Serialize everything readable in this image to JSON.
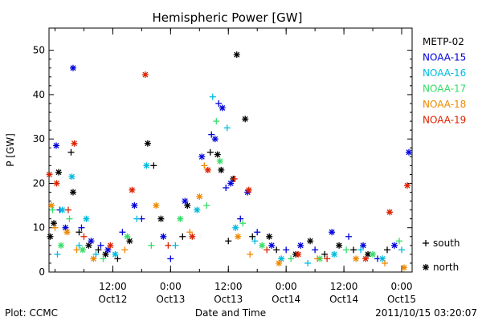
{
  "chart_data": {
    "type": "scatter",
    "title": "Hemispheric Power [GW]",
    "xlabel": "Date and Time",
    "ylabel": "P [GW]",
    "xlim": [
      "2011-10-11 22:45",
      "2011-10-15 02:10"
    ],
    "ylim": [
      0,
      55
    ],
    "yticks": [
      0,
      10,
      20,
      30,
      40,
      50
    ],
    "x_tick_labels": [
      {
        "time": "2011-10-12 12:00",
        "top": "12:00",
        "bottom": "Oct12"
      },
      {
        "time": "2011-10-13 00:00",
        "top": "0:00",
        "bottom": "Oct13"
      },
      {
        "time": "2011-10-13 12:00",
        "top": "12:00",
        "bottom": "Oct13"
      },
      {
        "time": "2011-10-14 00:00",
        "top": "0:00",
        "bottom": "Oct14"
      },
      {
        "time": "2011-10-14 12:00",
        "top": "12:00",
        "bottom": "Oct14"
      },
      {
        "time": "2011-10-15 00:00",
        "top": "0:00",
        "bottom": "Oct15"
      }
    ],
    "marker_legend": [
      {
        "symbol": "+",
        "label": "south"
      },
      {
        "symbol": "*",
        "label": "north"
      }
    ],
    "series": [
      {
        "name": "METP-02",
        "color": "#000000",
        "points": [
          {
            "t": "2011-10-11 23:00",
            "v": 8,
            "m": "north"
          },
          {
            "t": "2011-10-11 23:45",
            "v": 11,
            "m": "north"
          },
          {
            "t": "2011-10-12 00:45",
            "v": 22.5,
            "m": "north"
          },
          {
            "t": "2011-10-12 03:20",
            "v": 27,
            "m": "south"
          },
          {
            "t": "2011-10-12 03:45",
            "v": 18,
            "m": "north"
          },
          {
            "t": "2011-10-12 05:00",
            "v": 9,
            "m": "south"
          },
          {
            "t": "2011-10-12 07:00",
            "v": 6,
            "m": "north"
          },
          {
            "t": "2011-10-12 09:00",
            "v": 5,
            "m": "south"
          },
          {
            "t": "2011-10-12 10:30",
            "v": 4,
            "m": "north"
          },
          {
            "t": "2011-10-12 13:00",
            "v": 3,
            "m": "south"
          },
          {
            "t": "2011-10-12 15:30",
            "v": 7,
            "m": "north"
          },
          {
            "t": "2011-10-12 19:15",
            "v": 29,
            "m": "north"
          },
          {
            "t": "2011-10-12 20:30",
            "v": 24,
            "m": "south"
          },
          {
            "t": "2011-10-12 22:00",
            "v": 12,
            "m": "north"
          },
          {
            "t": "2011-10-13 02:30",
            "v": 8,
            "m": "south"
          },
          {
            "t": "2011-10-13 03:30",
            "v": 15,
            "m": "north"
          },
          {
            "t": "2011-10-13 08:15",
            "v": 27,
            "m": "south"
          },
          {
            "t": "2011-10-13 09:45",
            "v": 26.5,
            "m": "north"
          },
          {
            "t": "2011-10-13 10:30",
            "v": 23,
            "m": "north"
          },
          {
            "t": "2011-10-13 12:00",
            "v": 7,
            "m": "south"
          },
          {
            "t": "2011-10-13 13:00",
            "v": 21,
            "m": "north"
          },
          {
            "t": "2011-10-13 13:45",
            "v": 49,
            "m": "north"
          },
          {
            "t": "2011-10-13 15:30",
            "v": 34.5,
            "m": "north"
          },
          {
            "t": "2011-10-13 17:00",
            "v": 8,
            "m": "south"
          },
          {
            "t": "2011-10-13 20:30",
            "v": 8,
            "m": "north"
          },
          {
            "t": "2011-10-13 22:00",
            "v": 5,
            "m": "south"
          },
          {
            "t": "2011-10-14 02:00",
            "v": 4,
            "m": "north"
          },
          {
            "t": "2011-10-14 05:00",
            "v": 7,
            "m": "north"
          },
          {
            "t": "2011-10-14 08:00",
            "v": 4,
            "m": "south"
          },
          {
            "t": "2011-10-14 11:00",
            "v": 6,
            "m": "north"
          },
          {
            "t": "2011-10-14 14:00",
            "v": 5,
            "m": "south"
          },
          {
            "t": "2011-10-14 17:00",
            "v": 4,
            "m": "north"
          },
          {
            "t": "2011-10-14 21:00",
            "v": 5,
            "m": "south"
          }
        ]
      },
      {
        "name": "NOAA-15",
        "color": "#0000dd",
        "points": [
          {
            "t": "2011-10-12 00:15",
            "v": 28.5,
            "m": "north"
          },
          {
            "t": "2011-10-12 01:00",
            "v": 14,
            "m": "south"
          },
          {
            "t": "2011-10-12 02:10",
            "v": 10,
            "m": "north"
          },
          {
            "t": "2011-10-12 03:45",
            "v": 46,
            "m": "north"
          },
          {
            "t": "2011-10-12 05:30",
            "v": 10,
            "m": "south"
          },
          {
            "t": "2011-10-12 07:30",
            "v": 7,
            "m": "north"
          },
          {
            "t": "2011-10-12 09:30",
            "v": 6,
            "m": "south"
          },
          {
            "t": "2011-10-12 11:00",
            "v": 5,
            "m": "north"
          },
          {
            "t": "2011-10-12 14:00",
            "v": 9,
            "m": "south"
          },
          {
            "t": "2011-10-12 16:30",
            "v": 15,
            "m": "north"
          },
          {
            "t": "2011-10-12 18:00",
            "v": 12,
            "m": "south"
          },
          {
            "t": "2011-10-12 22:30",
            "v": 8,
            "m": "north"
          },
          {
            "t": "2011-10-13 00:00",
            "v": 3,
            "m": "south"
          },
          {
            "t": "2011-10-13 03:00",
            "v": 16,
            "m": "north"
          },
          {
            "t": "2011-10-13 06:30",
            "v": 26,
            "m": "north"
          },
          {
            "t": "2011-10-13 08:30",
            "v": 31,
            "m": "south"
          },
          {
            "t": "2011-10-13 09:15",
            "v": 30,
            "m": "north"
          },
          {
            "t": "2011-10-13 10:00",
            "v": 38,
            "m": "south"
          },
          {
            "t": "2011-10-13 10:45",
            "v": 37,
            "m": "north"
          },
          {
            "t": "2011-10-13 11:30",
            "v": 19,
            "m": "south"
          },
          {
            "t": "2011-10-13 12:30",
            "v": 20,
            "m": "north"
          },
          {
            "t": "2011-10-13 14:30",
            "v": 12,
            "m": "south"
          },
          {
            "t": "2011-10-13 16:00",
            "v": 18,
            "m": "north"
          },
          {
            "t": "2011-10-13 18:00",
            "v": 9,
            "m": "south"
          },
          {
            "t": "2011-10-13 21:00",
            "v": 6,
            "m": "north"
          },
          {
            "t": "2011-10-14 00:00",
            "v": 5,
            "m": "south"
          },
          {
            "t": "2011-10-14 03:00",
            "v": 6,
            "m": "north"
          },
          {
            "t": "2011-10-14 06:00",
            "v": 5,
            "m": "south"
          },
          {
            "t": "2011-10-14 09:30",
            "v": 9,
            "m": "north"
          },
          {
            "t": "2011-10-14 13:00",
            "v": 8,
            "m": "south"
          },
          {
            "t": "2011-10-14 16:00",
            "v": 6,
            "m": "north"
          },
          {
            "t": "2011-10-14 19:00",
            "v": 3,
            "m": "south"
          },
          {
            "t": "2011-10-14 22:30",
            "v": 6,
            "m": "north"
          },
          {
            "t": "2011-10-15 01:30",
            "v": 27,
            "m": "north"
          }
        ]
      },
      {
        "name": "NOAA-16",
        "color": "#00bbdd",
        "points": [
          {
            "t": "2011-10-12 00:30",
            "v": 4,
            "m": "south"
          },
          {
            "t": "2011-10-12 01:30",
            "v": 14,
            "m": "north"
          },
          {
            "t": "2011-10-12 03:30",
            "v": 21.5,
            "m": "north"
          },
          {
            "t": "2011-10-12 05:00",
            "v": 6,
            "m": "south"
          },
          {
            "t": "2011-10-12 06:30",
            "v": 12,
            "m": "north"
          },
          {
            "t": "2011-10-12 08:30",
            "v": 4,
            "m": "south"
          },
          {
            "t": "2011-10-12 12:30",
            "v": 4,
            "m": "north"
          },
          {
            "t": "2011-10-12 17:00",
            "v": 12,
            "m": "south"
          },
          {
            "t": "2011-10-12 19:00",
            "v": 24,
            "m": "north"
          },
          {
            "t": "2011-10-13 01:00",
            "v": 6,
            "m": "south"
          },
          {
            "t": "2011-10-13 05:30",
            "v": 14,
            "m": "north"
          },
          {
            "t": "2011-10-13 08:45",
            "v": 39.5,
            "m": "south"
          },
          {
            "t": "2011-10-13 11:45",
            "v": 32.5,
            "m": "south"
          },
          {
            "t": "2011-10-13 13:30",
            "v": 10,
            "m": "north"
          },
          {
            "t": "2011-10-13 17:30",
            "v": 7,
            "m": "south"
          },
          {
            "t": "2011-10-13 23:00",
            "v": 3,
            "m": "north"
          },
          {
            "t": "2011-10-14 04:30",
            "v": 2,
            "m": "south"
          },
          {
            "t": "2011-10-14 10:00",
            "v": 4,
            "m": "north"
          },
          {
            "t": "2011-10-14 15:30",
            "v": 5,
            "m": "south"
          },
          {
            "t": "2011-10-14 20:00",
            "v": 3,
            "m": "north"
          },
          {
            "t": "2011-10-15 00:00",
            "v": 5,
            "m": "south"
          }
        ]
      },
      {
        "name": "NOAA-17",
        "color": "#33dd66",
        "points": [
          {
            "t": "2011-10-11 23:30",
            "v": 14,
            "m": "south"
          },
          {
            "t": "2011-10-12 01:15",
            "v": 6,
            "m": "north"
          },
          {
            "t": "2011-10-12 03:00",
            "v": 12,
            "m": "south"
          },
          {
            "t": "2011-10-12 05:45",
            "v": 5,
            "m": "north"
          },
          {
            "t": "2011-10-12 10:00",
            "v": 3,
            "m": "south"
          },
          {
            "t": "2011-10-12 15:00",
            "v": 8,
            "m": "north"
          },
          {
            "t": "2011-10-12 20:00",
            "v": 6,
            "m": "south"
          },
          {
            "t": "2011-10-13 02:00",
            "v": 12,
            "m": "north"
          },
          {
            "t": "2011-10-13 07:30",
            "v": 15,
            "m": "south"
          },
          {
            "t": "2011-10-13 09:30",
            "v": 34,
            "m": "south"
          },
          {
            "t": "2011-10-13 10:15",
            "v": 25,
            "m": "north"
          },
          {
            "t": "2011-10-13 15:00",
            "v": 11,
            "m": "south"
          },
          {
            "t": "2011-10-13 19:00",
            "v": 6,
            "m": "north"
          },
          {
            "t": "2011-10-14 01:00",
            "v": 3,
            "m": "south"
          },
          {
            "t": "2011-10-14 07:00",
            "v": 3,
            "m": "north"
          },
          {
            "t": "2011-10-14 12:30",
            "v": 5,
            "m": "south"
          },
          {
            "t": "2011-10-14 18:00",
            "v": 4,
            "m": "north"
          },
          {
            "t": "2011-10-14 23:30",
            "v": 7,
            "m": "south"
          }
        ]
      },
      {
        "name": "NOAA-18",
        "color": "#ee8800",
        "points": [
          {
            "t": "2011-10-11 23:15",
            "v": 15,
            "m": "north"
          },
          {
            "t": "2011-10-12 00:00",
            "v": 10,
            "m": "south"
          },
          {
            "t": "2011-10-12 02:30",
            "v": 9,
            "m": "north"
          },
          {
            "t": "2011-10-12 04:30",
            "v": 5,
            "m": "south"
          },
          {
            "t": "2011-10-12 08:00",
            "v": 3,
            "m": "north"
          },
          {
            "t": "2011-10-12 14:30",
            "v": 5,
            "m": "south"
          },
          {
            "t": "2011-10-12 21:00",
            "v": 15,
            "m": "north"
          },
          {
            "t": "2011-10-13 04:00",
            "v": 9,
            "m": "south"
          },
          {
            "t": "2011-10-13 06:00",
            "v": 17,
            "m": "north"
          },
          {
            "t": "2011-10-13 07:00",
            "v": 24,
            "m": "south"
          },
          {
            "t": "2011-10-13 14:00",
            "v": 8,
            "m": "north"
          },
          {
            "t": "2011-10-13 16:30",
            "v": 4,
            "m": "south"
          },
          {
            "t": "2011-10-13 22:30",
            "v": 2,
            "m": "north"
          },
          {
            "t": "2011-10-14 06:30",
            "v": 3,
            "m": "south"
          },
          {
            "t": "2011-10-14 14:30",
            "v": 3,
            "m": "north"
          },
          {
            "t": "2011-10-14 20:30",
            "v": 2,
            "m": "south"
          },
          {
            "t": "2011-10-15 00:30",
            "v": 1,
            "m": "north"
          }
        ]
      },
      {
        "name": "NOAA-19",
        "color": "#dd2200",
        "points": [
          {
            "t": "2011-10-11 22:50",
            "v": 22,
            "m": "north"
          },
          {
            "t": "2011-10-12 00:20",
            "v": 20,
            "m": "north"
          },
          {
            "t": "2011-10-12 02:45",
            "v": 14,
            "m": "south"
          },
          {
            "t": "2011-10-12 04:00",
            "v": 29,
            "m": "north"
          },
          {
            "t": "2011-10-12 06:00",
            "v": 8,
            "m": "south"
          },
          {
            "t": "2011-10-12 11:30",
            "v": 6,
            "m": "north"
          },
          {
            "t": "2011-10-12 16:00",
            "v": 18.5,
            "m": "north"
          },
          {
            "t": "2011-10-12 18:45",
            "v": 44.5,
            "m": "north"
          },
          {
            "t": "2011-10-12 23:30",
            "v": 6,
            "m": "south"
          },
          {
            "t": "2011-10-13 04:30",
            "v": 8,
            "m": "north"
          },
          {
            "t": "2011-10-13 07:45",
            "v": 23,
            "m": "north"
          },
          {
            "t": "2011-10-13 13:15",
            "v": 21,
            "m": "south"
          },
          {
            "t": "2011-10-13 16:15",
            "v": 18.5,
            "m": "north"
          },
          {
            "t": "2011-10-13 20:00",
            "v": 5,
            "m": "south"
          },
          {
            "t": "2011-10-14 02:30",
            "v": 4,
            "m": "north"
          },
          {
            "t": "2011-10-14 08:30",
            "v": 3,
            "m": "south"
          },
          {
            "t": "2011-10-14 16:30",
            "v": 3,
            "m": "north"
          },
          {
            "t": "2011-10-14 21:30",
            "v": 13.5,
            "m": "north"
          },
          {
            "t": "2011-10-15 01:10",
            "v": 19.5,
            "m": "north"
          }
        ]
      }
    ]
  },
  "footer": {
    "left": "Plot: CCMC",
    "right": "2011/10/15 03:20:07"
  }
}
